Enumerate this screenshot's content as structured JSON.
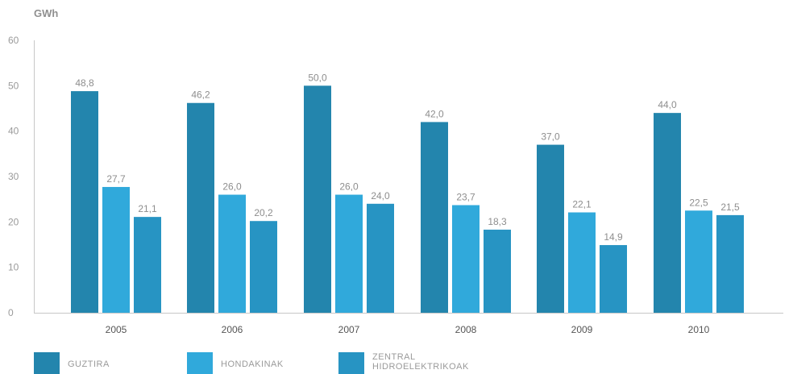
{
  "chart_data": {
    "type": "bar",
    "unit": "GWh",
    "categories": [
      "2005",
      "2006",
      "2007",
      "2008",
      "2009",
      "2010"
    ],
    "series": [
      {
        "name": "GUZTIRA",
        "color": "#2385ad",
        "values": [
          48.8,
          46.2,
          50.0,
          42.0,
          37.0,
          44.0
        ],
        "labels": [
          "48,8",
          "46,2",
          "50,0",
          "42,0",
          "37,0",
          "44,0"
        ]
      },
      {
        "name": "HONDAKINAK",
        "color": "#30a9db",
        "values": [
          27.7,
          26.0,
          26.0,
          23.7,
          22.1,
          22.5
        ],
        "labels": [
          "27,7",
          "26,0",
          "26,0",
          "23,7",
          "22,1",
          "22,5"
        ]
      },
      {
        "name_lines": [
          "ZENTRAL",
          "HIDROELEKTRIKOAK"
        ],
        "color": "#2794c3",
        "values": [
          21.1,
          20.2,
          24.0,
          18.3,
          14.9,
          21.5
        ],
        "labels": [
          "21,1",
          "20,2",
          "24,0",
          "18,3",
          "14,9",
          "21,5"
        ]
      }
    ],
    "ylim": [
      0,
      60
    ],
    "yticks": [
      "0",
      "10",
      "20",
      "30",
      "40",
      "50",
      "60"
    ],
    "legend_position": "bottom-left",
    "grid": false
  }
}
